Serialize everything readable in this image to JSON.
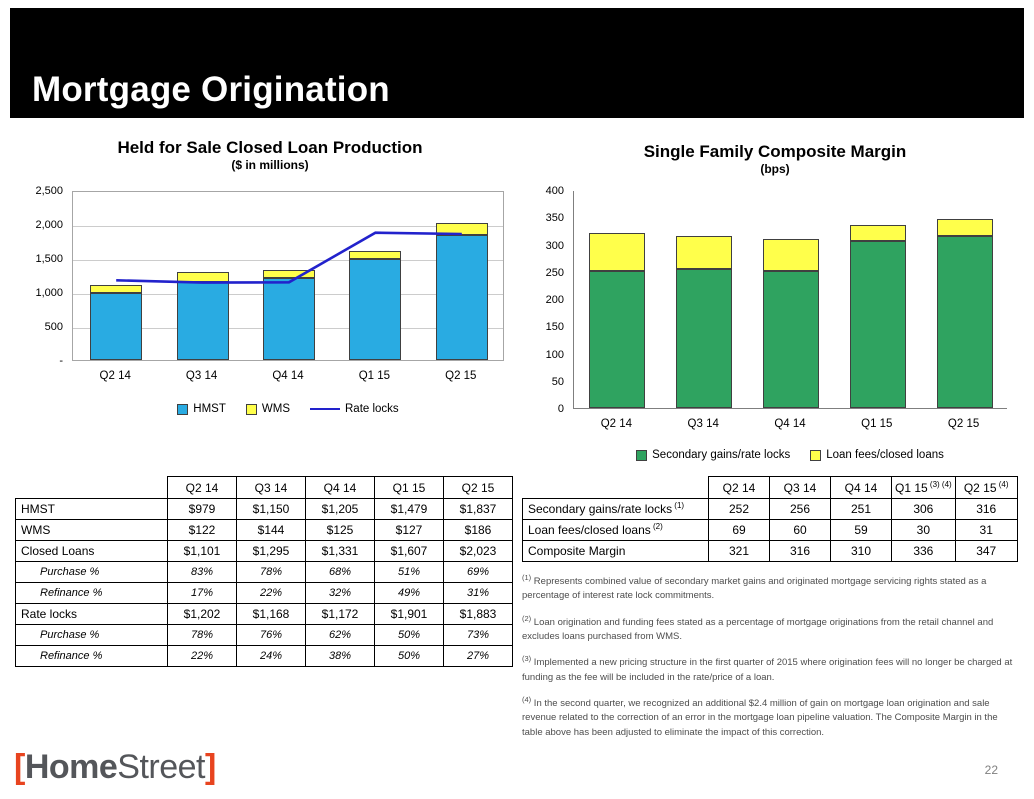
{
  "header": {
    "title": "Mortgage Origination"
  },
  "chart_data": [
    {
      "type": "bar",
      "title": "Held for Sale Closed Loan Production",
      "subtitle": "($ in millions)",
      "categories": [
        "Q2 14",
        "Q3 14",
        "Q4 14",
        "Q1 15",
        "Q2 15"
      ],
      "series": [
        {
          "name": "HMST",
          "type": "bar",
          "color": "#29ABE2",
          "values": [
            979,
            1150,
            1205,
            1479,
            1837
          ]
        },
        {
          "name": "WMS",
          "type": "bar",
          "color": "#FFFF4B",
          "values": [
            122,
            144,
            125,
            127,
            186
          ]
        },
        {
          "name": "Rate locks",
          "type": "line",
          "color": "#2222CC",
          "values": [
            1202,
            1168,
            1172,
            1901,
            1883
          ]
        }
      ],
      "ylim": [
        0,
        2500
      ],
      "yticks": [
        "-",
        "500",
        "1,000",
        "1,500",
        "2,000",
        "2,500"
      ],
      "grid": true,
      "legend_position": "bottom"
    },
    {
      "type": "bar",
      "title": "Single Family Composite Margin",
      "subtitle": "(bps)",
      "categories": [
        "Q2 14",
        "Q3 14",
        "Q4 14",
        "Q1 15",
        "Q2 15"
      ],
      "series": [
        {
          "name": "Secondary gains/rate locks",
          "type": "bar",
          "color": "#2FA360",
          "values": [
            252,
            256,
            251,
            306,
            316
          ]
        },
        {
          "name": "Loan fees/closed loans",
          "type": "bar",
          "color": "#FFFF4B",
          "values": [
            69,
            60,
            59,
            30,
            31
          ]
        }
      ],
      "ylim": [
        0,
        400
      ],
      "yticks": [
        "0",
        "50",
        "100",
        "150",
        "200",
        "250",
        "300",
        "350",
        "400"
      ],
      "grid": false,
      "legend_position": "bottom"
    }
  ],
  "left_table": {
    "columns": [
      "",
      "Q2 14",
      "Q3 14",
      "Q4 14",
      "Q1 15",
      "Q2 15"
    ],
    "rows": [
      {
        "label": "HMST",
        "style": "normal",
        "values": [
          "$979",
          "$1,150",
          "$1,205",
          "$1,479",
          "$1,837"
        ]
      },
      {
        "label": "WMS",
        "style": "normal",
        "values": [
          "$122",
          "$144",
          "$125",
          "$127",
          "$186"
        ]
      },
      {
        "label": "Closed Loans",
        "style": "normal",
        "values": [
          "$1,101",
          "$1,295",
          "$1,331",
          "$1,607",
          "$2,023"
        ]
      },
      {
        "label": "Purchase %",
        "style": "sub",
        "values": [
          "83%",
          "78%",
          "68%",
          "51%",
          "69%"
        ]
      },
      {
        "label": "Refinance %",
        "style": "sub",
        "values": [
          "17%",
          "22%",
          "32%",
          "49%",
          "31%"
        ]
      },
      {
        "label": "Rate locks",
        "style": "normal",
        "values": [
          "$1,202",
          "$1,168",
          "$1,172",
          "$1,901",
          "$1,883"
        ]
      },
      {
        "label": "Purchase %",
        "style": "sub",
        "values": [
          "78%",
          "76%",
          "62%",
          "50%",
          "73%"
        ]
      },
      {
        "label": "Refinance %",
        "style": "sub",
        "values": [
          "22%",
          "24%",
          "38%",
          "50%",
          "27%"
        ]
      }
    ]
  },
  "right_table": {
    "columns": [
      {
        "text": "",
        "sup": ""
      },
      {
        "text": "Q2 14",
        "sup": ""
      },
      {
        "text": "Q3 14",
        "sup": ""
      },
      {
        "text": "Q4 14",
        "sup": ""
      },
      {
        "text": "Q1 15",
        "sup": "(3) (4)"
      },
      {
        "text": "Q2 15",
        "sup": "(4)"
      }
    ],
    "rows": [
      {
        "label": "Secondary gains/rate locks",
        "sup": "(1)",
        "values": [
          "252",
          "256",
          "251",
          "306",
          "316"
        ]
      },
      {
        "label": "Loan fees/closed loans",
        "sup": "(2)",
        "values": [
          "69",
          "60",
          "59",
          "30",
          "31"
        ]
      },
      {
        "label": "Composite Margin",
        "sup": "",
        "values": [
          "321",
          "316",
          "310",
          "336",
          "347"
        ]
      }
    ]
  },
  "footnotes": [
    {
      "sup": "(1)",
      "text": "Represents combined value of secondary market gains and originated mortgage servicing rights stated as a percentage of interest rate lock commitments."
    },
    {
      "sup": "(2)",
      "text": "Loan origination and funding fees stated as a percentage of mortgage originations from the retail channel and excludes loans purchased from WMS."
    },
    {
      "sup": "(3)",
      "text": "Implemented a new pricing structure in the first quarter of 2015 where origination fees will no longer be charged at funding as the fee will be included in the rate/price of a loan."
    },
    {
      "sup": "(4)",
      "text": "In the second quarter, we recognized an additional $2.4 million of gain on mortgage loan origination and sale revenue related to the correction of an error in the mortgage loan pipeline valuation. The Composite Margin in the table above has been adjusted to eliminate the impact of this correction."
    }
  ],
  "footer": {
    "page_number": "22",
    "logo": {
      "bracket_left": "[",
      "brand_bold": "Home",
      "brand_light": "Street",
      "bracket_right": "]"
    }
  }
}
